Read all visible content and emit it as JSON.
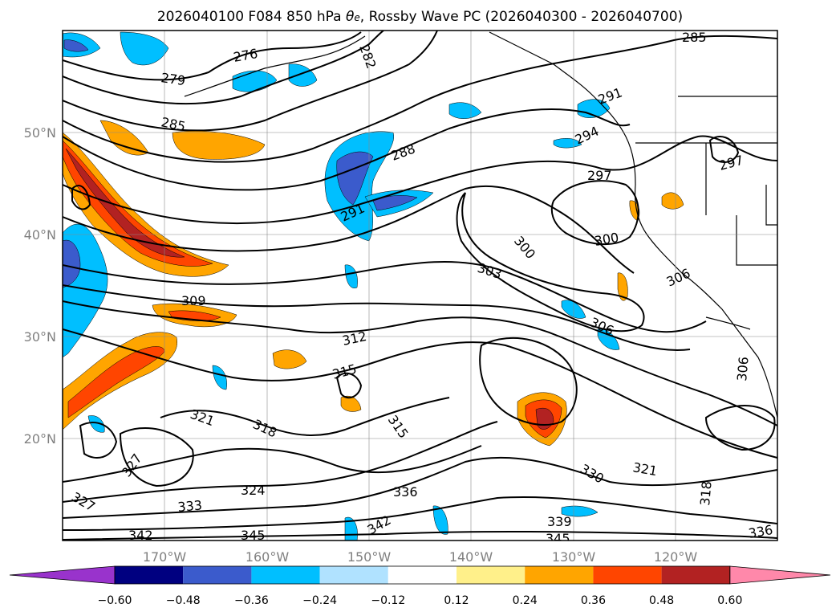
{
  "title": {
    "prefix": "2026040100 F084 850 hPa ",
    "theta": "θ",
    "theta_sub": "e",
    "suffix": ", Rossby Wave PC (2026040300 - 2026040700)"
  },
  "map": {
    "lon_ticks": [
      "170°W",
      "160°W",
      "150°W",
      "140°W",
      "130°W",
      "120°W"
    ],
    "lat_ticks": [
      "50°N",
      "40°N",
      "30°N",
      "20°N"
    ],
    "contour_labels": [
      "276",
      "279",
      "282",
      "285",
      "285",
      "288",
      "291",
      "291",
      "294",
      "297",
      "297",
      "300",
      "300",
      "303",
      "306",
      "306",
      "306",
      "309",
      "312",
      "315",
      "315",
      "318",
      "318",
      "321",
      "321",
      "324",
      "327",
      "327",
      "330",
      "333",
      "336",
      "339",
      "342",
      "342",
      "345",
      "345",
      "336"
    ]
  },
  "colorbar": {
    "ticks": [
      "−0.60",
      "−0.48",
      "−0.36",
      "−0.24",
      "−0.12",
      "0.12",
      "0.24",
      "0.36",
      "0.48",
      "0.60"
    ],
    "colors": [
      "#9933cc",
      "#000080",
      "#3b5bcc",
      "#00bfff",
      "#b0e2ff",
      "#ffffff",
      "#fff08a",
      "#ffa500",
      "#ff4500",
      "#b22222",
      "#ff88aa"
    ]
  }
}
